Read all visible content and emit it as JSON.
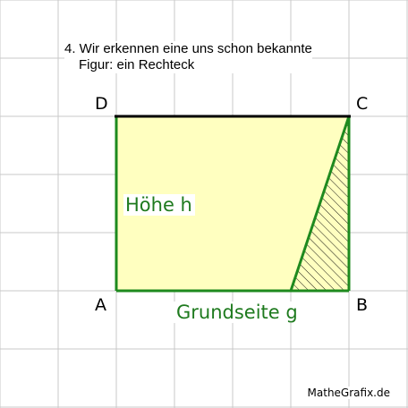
{
  "instruction": {
    "line1": "4. Wir erkennen eine uns schon bekannte",
    "line2": "Figur: ein Rechteck"
  },
  "vertices": {
    "A": "A",
    "B": "B",
    "C": "C",
    "D": "D"
  },
  "labels": {
    "height": "Höhe h",
    "base": "Grundseite g"
  },
  "credit": "MatheGrafix.de",
  "colors": {
    "grid": "#c8c8c8",
    "fill": "#ffffc0",
    "outline": "#1e8a1e",
    "label_green": "#1e7a1e",
    "top_edge": "#000000",
    "hatch": "#000000"
  }
}
